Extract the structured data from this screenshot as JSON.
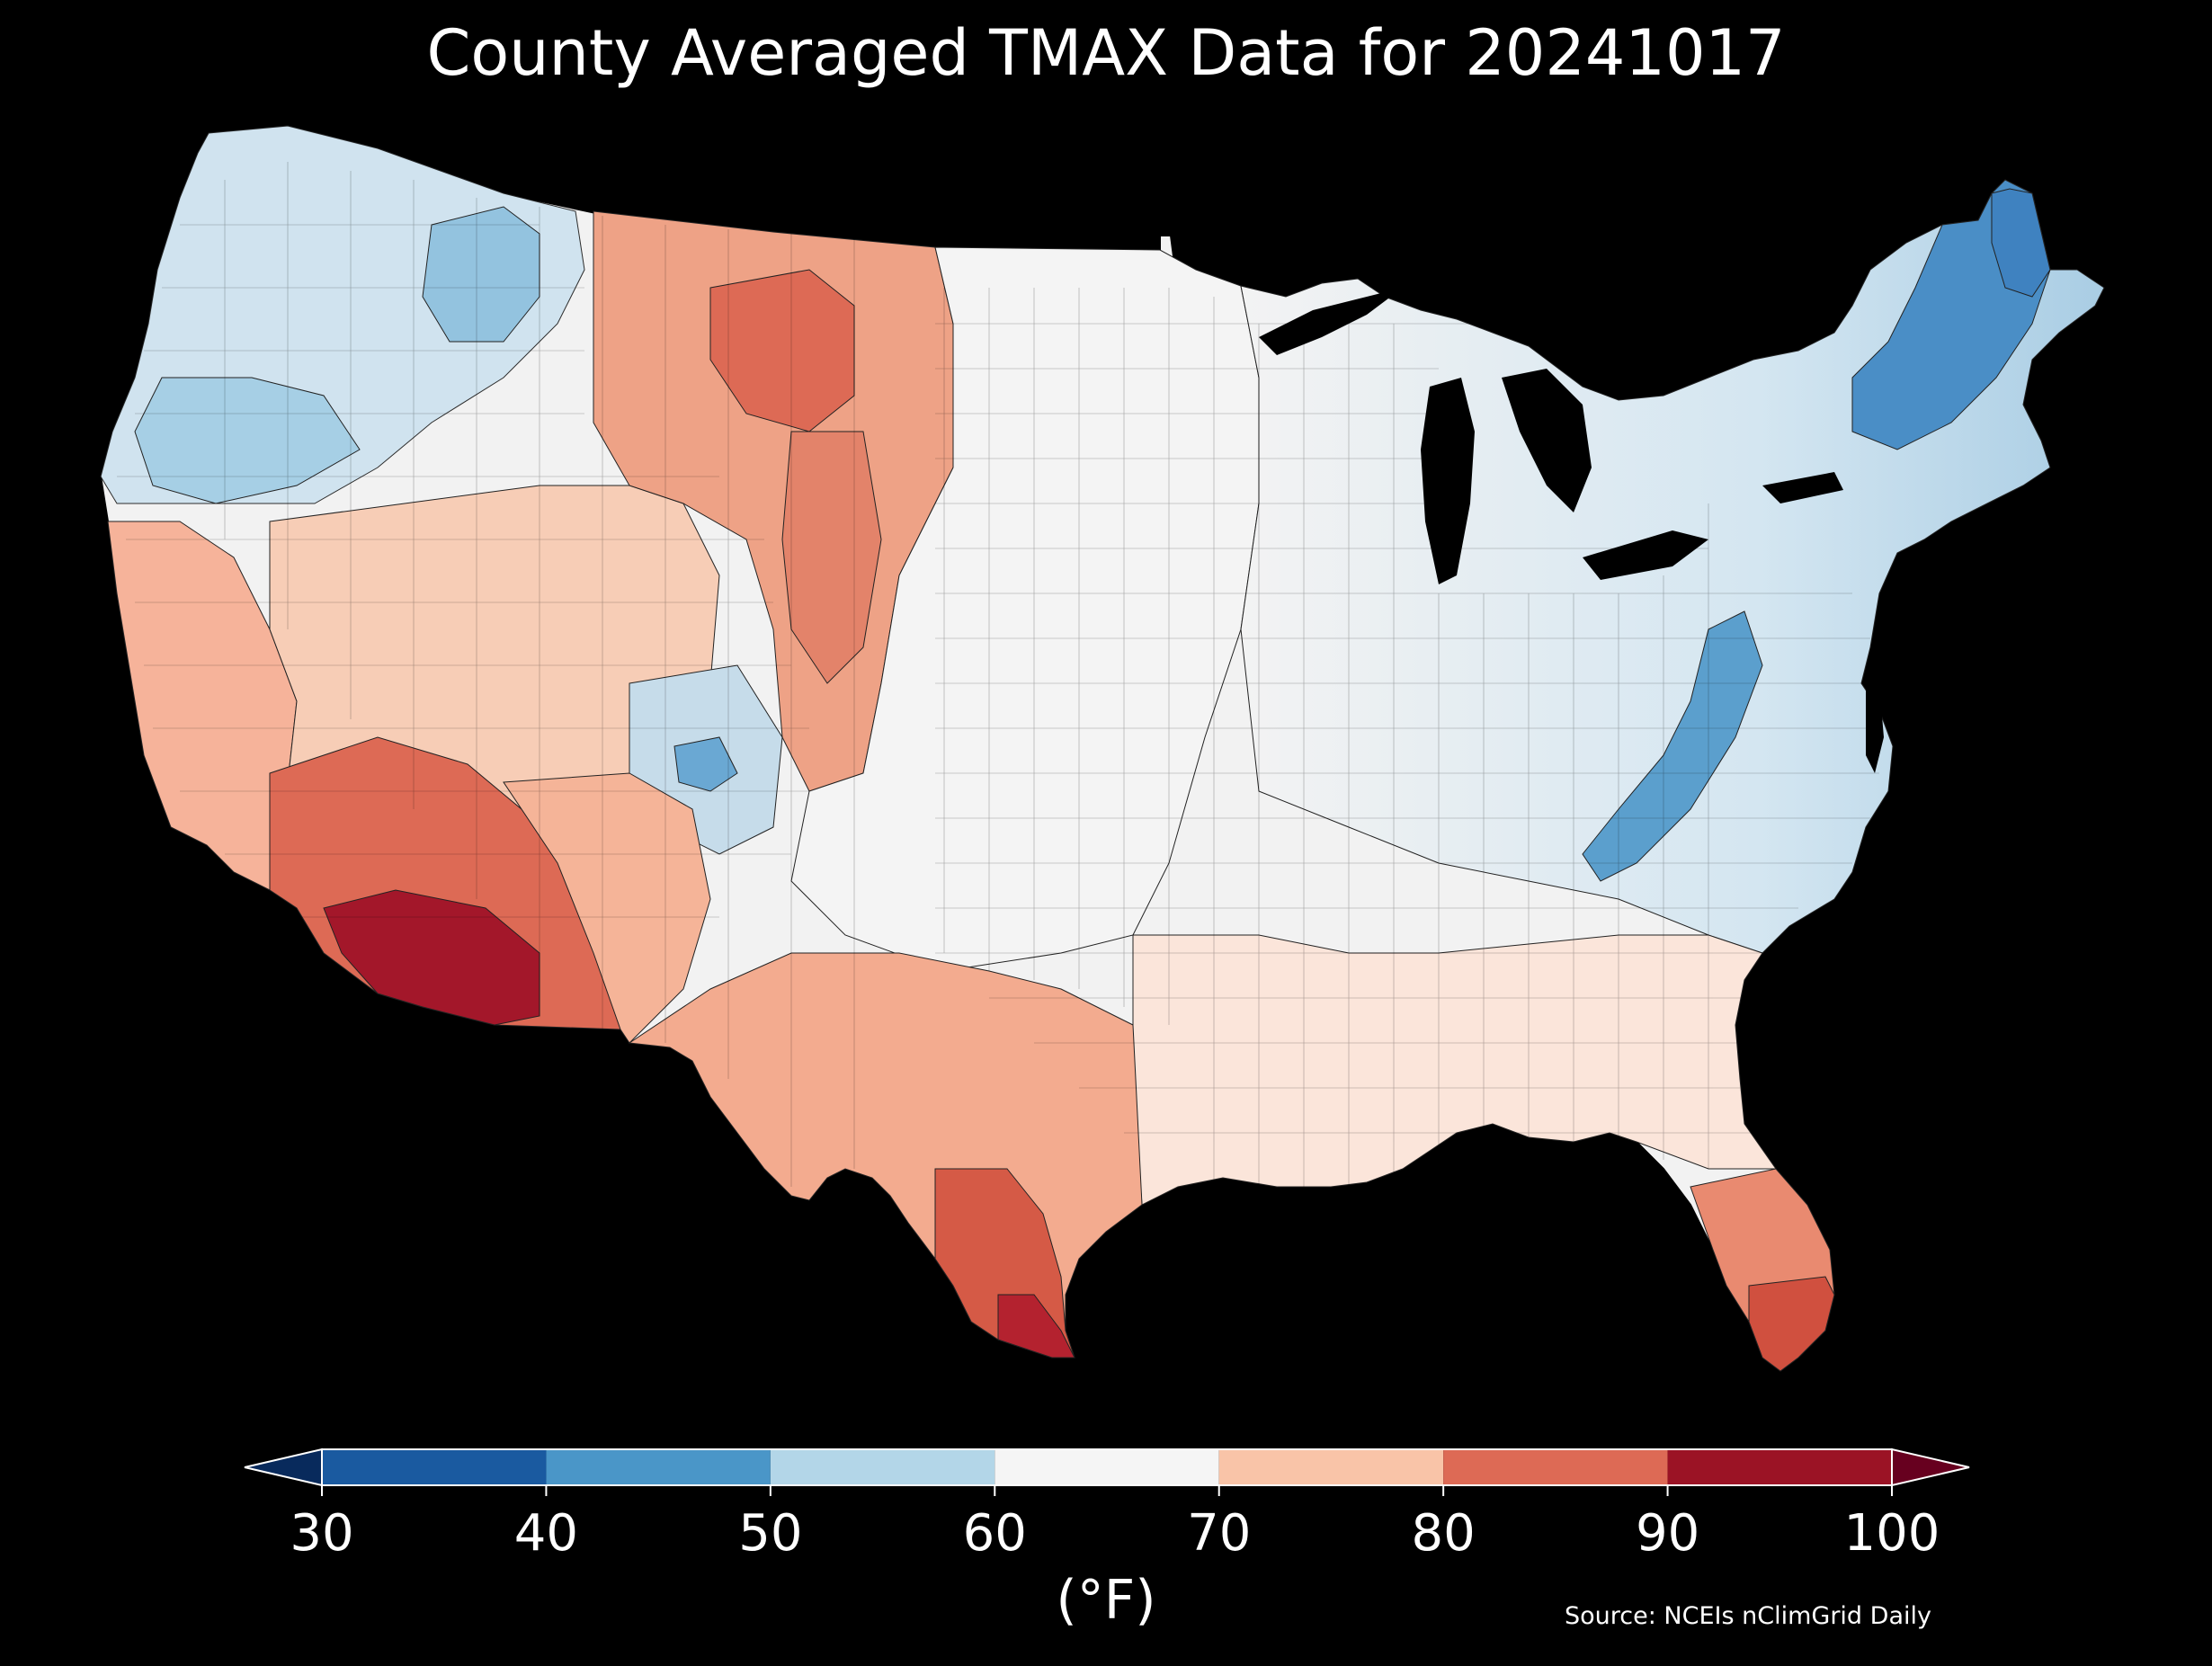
{
  "title": "County Averaged TMAX Data for 20241017",
  "colorbar": {
    "unit_label": "(°F)",
    "ticks": [
      "30",
      "40",
      "50",
      "60",
      "70",
      "80",
      "90",
      "100"
    ],
    "bins": [
      {
        "min": 30,
        "max": 40,
        "color": "#1a5aa0"
      },
      {
        "min": 40,
        "max": 50,
        "color": "#4a96c8"
      },
      {
        "min": 50,
        "max": 60,
        "color": "#b3d6e8"
      },
      {
        "min": 60,
        "max": 70,
        "color": "#f5f5f5"
      },
      {
        "min": 70,
        "max": 80,
        "color": "#f9c4a8"
      },
      {
        "min": 80,
        "max": 90,
        "color": "#dd6a55"
      },
      {
        "min": 90,
        "max": 100,
        "color": "#9b1325"
      }
    ],
    "under_color": "#082a5c",
    "over_color": "#67001f"
  },
  "source": "Source: NCEIs nClimGrid Daily",
  "map": {
    "background": "#000000",
    "border_color": "#000000"
  }
}
